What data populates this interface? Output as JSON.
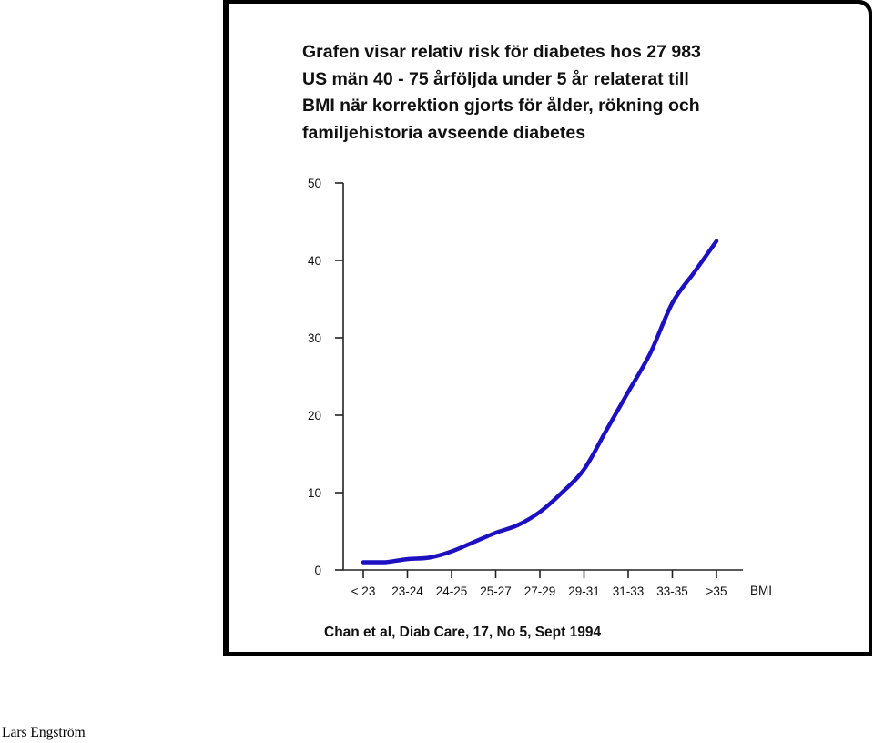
{
  "title_lines": [
    "Grafen visar relativ risk för diabetes hos 27 983",
    "US män 40 - 75 årföljda under 5 år relaterat till",
    "BMI när korrektion gjorts för ålder, rökning och",
    "familjehistoria avseende diabetes"
  ],
  "source": "Chan et al, Diab Care, 17, No 5, Sept 1994",
  "footer": "Lars Engström",
  "colors": {
    "line": "#1c10c0",
    "axis": "#222222",
    "frame": "#000000"
  },
  "chart_data": {
    "type": "line",
    "xlabel": "BMI",
    "ylabel": "",
    "ylim": [
      0,
      50
    ],
    "yticks": [
      0,
      10,
      20,
      30,
      40,
      50
    ],
    "categories": [
      "< 23",
      "23-24",
      "24-25",
      "25-27",
      "27-29",
      "29-31",
      "31-33",
      "33-35",
      ">35"
    ],
    "x": [
      0,
      0.25,
      0.5,
      1,
      1.5,
      2,
      2.5,
      3,
      3.5,
      4,
      4.5,
      5,
      5.5,
      6,
      6.5,
      7,
      7.5,
      8
    ],
    "values": [
      1.0,
      1.0,
      1.0,
      1.4,
      1.6,
      2.4,
      3.6,
      4.8,
      5.8,
      7.5,
      10.0,
      13.0,
      18.0,
      23.0,
      28.0,
      34.5,
      38.5,
      42.5
    ],
    "grid": false
  }
}
